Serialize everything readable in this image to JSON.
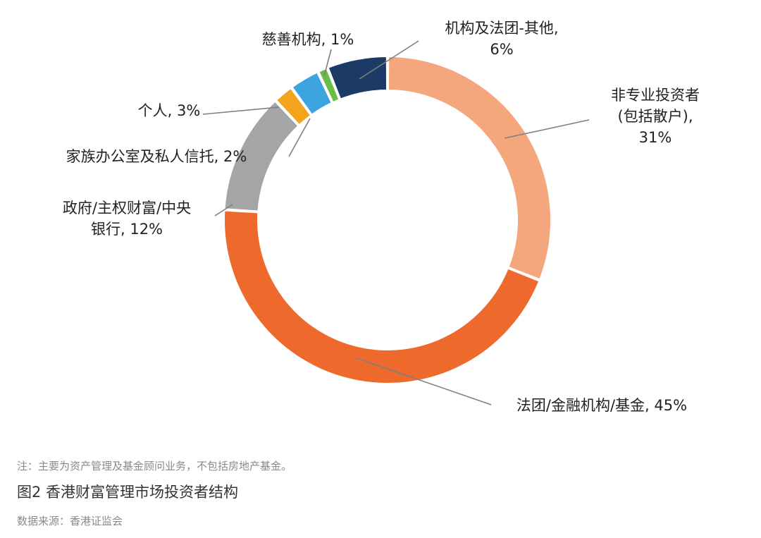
{
  "chart_data": {
    "type": "pie",
    "variant": "donut",
    "slices": [
      {
        "label_lines": [
          "非专业投资者",
          "(包括散户),",
          "31%"
        ],
        "value": 31,
        "color": "#F4A77C"
      },
      {
        "label_lines": [
          "法团/金融机构/基金, 45%"
        ],
        "value": 45,
        "color": "#EE6A2C"
      },
      {
        "label_lines": [
          "政府/主权财富/中央",
          "银行, 12%"
        ],
        "value": 12,
        "color": "#A5A5A5"
      },
      {
        "label_lines": [
          "家族办公室及私人信托, 2%"
        ],
        "value": 2,
        "color": "#F2A41C"
      },
      {
        "label_lines": [
          "个人, 3%"
        ],
        "value": 3,
        "color": "#3CA4DE"
      },
      {
        "label_lines": [
          "慈善机构, 1%"
        ],
        "value": 1,
        "color": "#6BBE45"
      },
      {
        "label_lines": [
          "机构及法团-其他,",
          "6%"
        ],
        "value": 6,
        "color": "#1B3A66"
      }
    ],
    "start_angle_deg": 0,
    "direction": "clockwise",
    "legend": "none"
  },
  "caption": {
    "note": "注：主要为资产管理及基金顾问业务，不包括房地产基金。",
    "title": "图2  香港财富管理市场投资者结构",
    "source": "数据来源：香港证监会"
  }
}
